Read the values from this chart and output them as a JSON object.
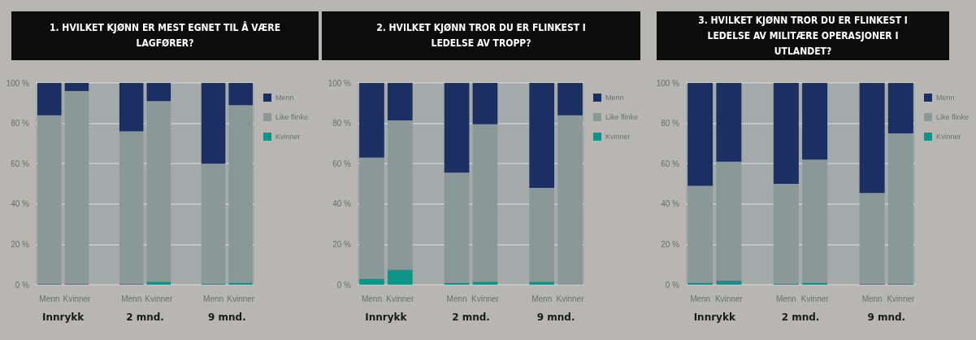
{
  "chart_data": [
    {
      "type": "bar",
      "title": "1. HVILKET KJØNN ER MEST EGNET TIL Å VÆRE LAGFØRER?",
      "stacked": true,
      "legend": "right",
      "grid": "y",
      "categories": [
        "Menn",
        "Kvinner",
        null,
        "Menn",
        "Kvinner",
        null,
        "Menn",
        "Kvinner"
      ],
      "series": [
        {
          "name": "Kvinner",
          "color": "#0f9488",
          "values": [
            0.5,
            0.5,
            null,
            0.5,
            1.5,
            null,
            0.5,
            1
          ]
        },
        {
          "name": "Like flinke",
          "color": "#8b9898",
          "values": [
            83.5,
            95.5,
            null,
            75.5,
            89.5,
            null,
            59.5,
            88
          ]
        },
        {
          "name": "Menn",
          "color": "#1c2f63",
          "values": [
            16,
            4,
            null,
            24,
            9,
            null,
            40,
            11
          ]
        }
      ],
      "ylim": [
        0,
        100
      ],
      "yticks": [
        {
          "value": 0,
          "label": "0 %"
        },
        {
          "value": 20,
          "label": "20 %"
        },
        {
          "value": 40,
          "label": "40 %"
        },
        {
          "value": 60,
          "label": "60 %"
        },
        {
          "value": 80,
          "label": "80 %"
        },
        {
          "value": 100,
          "label": "100 %"
        }
      ],
      "annotations": [
        "Innrykk",
        "2 mnd.",
        "9 mnd."
      ]
    },
    {
      "type": "bar",
      "title": "2. HVILKET KJØNN TROR DU ER FLINKEST I LEDELSE AV TROPP?",
      "stacked": true,
      "legend": "right",
      "grid": "y",
      "categories": [
        "Menn",
        "Kvinner",
        null,
        "Menn",
        "Kvinner",
        null,
        "Menn",
        "Kvinner"
      ],
      "series": [
        {
          "name": "Kvinner",
          "color": "#0f9488",
          "values": [
            3,
            7.5,
            null,
            1,
            1.5,
            null,
            1.5,
            0
          ]
        },
        {
          "name": "Like flinke",
          "color": "#8b9898",
          "values": [
            60,
            74,
            null,
            54.5,
            78,
            null,
            46.5,
            84
          ]
        },
        {
          "name": "Menn",
          "color": "#1c2f63",
          "values": [
            37,
            18.5,
            null,
            44.5,
            20.5,
            null,
            52,
            16
          ]
        }
      ],
      "ylim": [
        0,
        100
      ],
      "yticks": [
        {
          "value": 0,
          "label": "0 %"
        },
        {
          "value": 20,
          "label": "20 %"
        },
        {
          "value": 40,
          "label": "40 %"
        },
        {
          "value": 60,
          "label": "60 %"
        },
        {
          "value": 80,
          "label": "80 %"
        },
        {
          "value": 100,
          "label": "100 %"
        }
      ],
      "annotations": [
        "Innrykk",
        "2 mnd.",
        "9 mnd."
      ]
    },
    {
      "type": "bar",
      "title": "3. HVILKET KJØNN TROR DU ER FLINKEST I LEDELSE AV MILITÆRE OPERASJONER I UTLANDET?",
      "stacked": true,
      "legend": "right",
      "grid": "y",
      "categories": [
        "Menn",
        "Kvinner",
        null,
        "Menn",
        "Kvinner",
        null,
        "Menn",
        "Kvinner"
      ],
      "series": [
        {
          "name": "Kvinner",
          "color": "#0f9488",
          "values": [
            1,
            2,
            null,
            0.5,
            1,
            null,
            0.5,
            0.5
          ]
        },
        {
          "name": "Like flinke",
          "color": "#8b9898",
          "values": [
            48,
            59,
            null,
            49.5,
            61,
            null,
            45,
            74.5
          ]
        },
        {
          "name": "Menn",
          "color": "#1c2f63",
          "values": [
            51,
            39,
            null,
            50,
            38,
            null,
            54.5,
            25
          ]
        }
      ],
      "ylim": [
        0,
        100
      ],
      "yticks": [
        {
          "value": 0,
          "label": "0 %"
        },
        {
          "value": 20,
          "label": "20 %"
        },
        {
          "value": 40,
          "label": "40 %"
        },
        {
          "value": 60,
          "label": "60 %"
        },
        {
          "value": 80,
          "label": "80 %"
        },
        {
          "value": 100,
          "label": "100 %"
        }
      ],
      "annotations": [
        "Innrykk",
        "2 mnd.",
        "9 mnd."
      ]
    }
  ]
}
